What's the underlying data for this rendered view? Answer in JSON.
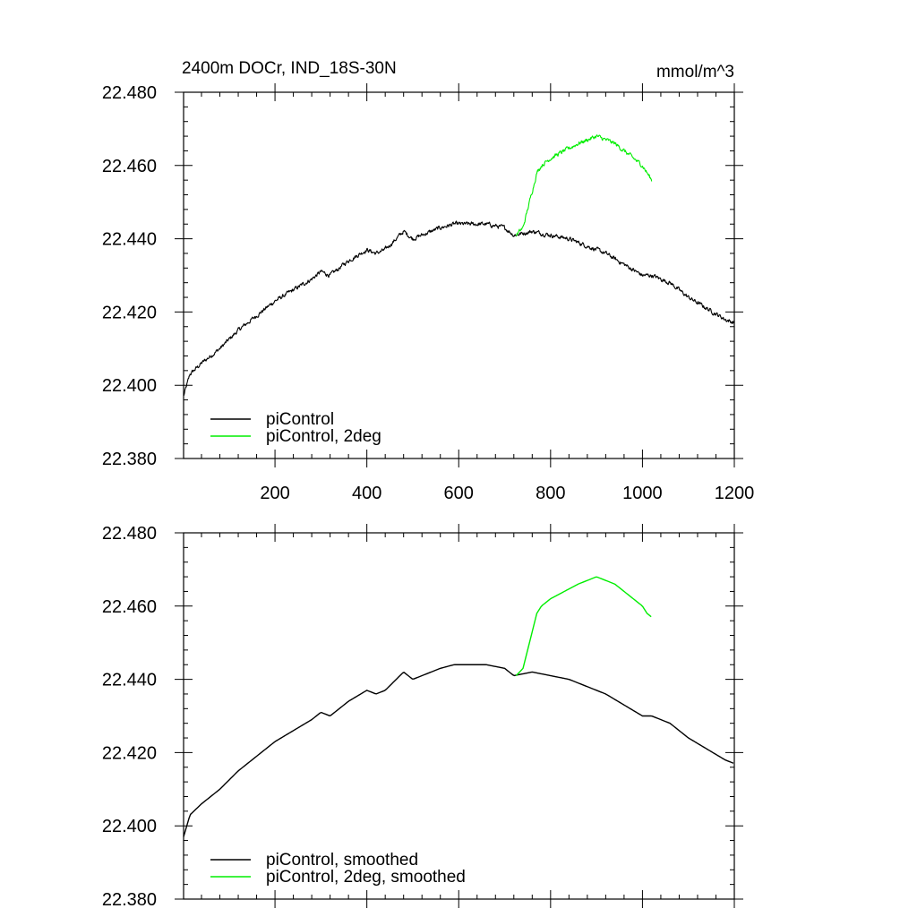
{
  "figure": {
    "title": "2400m DOCr, IND_18S-30N",
    "units": "mmol/m^3"
  },
  "colors": {
    "piControl": "#000000",
    "piControl_2deg": "#00ee00",
    "axes": "#000000",
    "background": "#ffffff"
  },
  "chart_data": [
    {
      "type": "line",
      "title": "2400m DOCr, IND_18S-30N",
      "units_label": "mmol/m^3",
      "xlim": [
        1,
        1200
      ],
      "ylim": [
        22.38,
        22.48
      ],
      "x_ticks": [
        200,
        400,
        600,
        800,
        1000,
        1200
      ],
      "x_tick_labels": [
        "200",
        "400",
        "600",
        "800",
        "1000",
        "1200"
      ],
      "y_ticks": [
        22.38,
        22.4,
        22.42,
        22.44,
        22.46,
        22.48
      ],
      "y_tick_labels": [
        "22.380",
        "22.400",
        "22.420",
        "22.440",
        "22.460",
        "22.480"
      ],
      "grid": false,
      "legend_position": "bottom-left",
      "noisy": true,
      "series": [
        {
          "name": "piControl",
          "color": "#000000",
          "x": [
            1,
            15,
            40,
            80,
            120,
            160,
            200,
            240,
            280,
            300,
            320,
            360,
            400,
            420,
            440,
            480,
            500,
            520,
            560,
            590,
            620,
            660,
            700,
            720,
            760,
            800,
            840,
            880,
            920,
            960,
            1000,
            1020,
            1060,
            1100,
            1140,
            1180,
            1200
          ],
          "y": [
            22.397,
            22.403,
            22.406,
            22.41,
            22.415,
            22.419,
            22.423,
            22.426,
            22.429,
            22.431,
            22.43,
            22.434,
            22.437,
            22.436,
            22.437,
            22.442,
            22.44,
            22.441,
            22.443,
            22.444,
            22.444,
            22.444,
            22.443,
            22.441,
            22.442,
            22.441,
            22.44,
            22.438,
            22.436,
            22.433,
            22.43,
            22.43,
            22.428,
            22.424,
            22.421,
            22.418,
            22.417
          ]
        },
        {
          "name": "piControl, 2deg",
          "color": "#00ee00",
          "x": [
            725,
            740,
            750,
            760,
            770,
            780,
            800,
            830,
            860,
            880,
            900,
            920,
            940,
            960,
            980,
            1000,
            1010,
            1020
          ],
          "y": [
            22.441,
            22.443,
            22.448,
            22.453,
            22.458,
            22.46,
            22.462,
            22.464,
            22.466,
            22.467,
            22.468,
            22.467,
            22.466,
            22.464,
            22.462,
            22.46,
            22.458,
            22.456
          ]
        }
      ]
    },
    {
      "type": "line",
      "xlim": [
        1,
        1200
      ],
      "ylim": [
        22.38,
        22.48
      ],
      "x_ticks": [
        200,
        400,
        600,
        800,
        1000,
        1200
      ],
      "y_ticks": [
        22.38,
        22.4,
        22.42,
        22.44,
        22.46,
        22.48
      ],
      "y_tick_labels": [
        "22.380",
        "22.400",
        "22.420",
        "22.440",
        "22.460",
        "22.480"
      ],
      "grid": false,
      "legend_position": "bottom-left",
      "noisy": false,
      "series": [
        {
          "name": "piControl, smoothed",
          "color": "#000000",
          "x": [
            1,
            15,
            40,
            80,
            120,
            160,
            200,
            240,
            280,
            300,
            320,
            360,
            400,
            420,
            440,
            480,
            500,
            520,
            560,
            590,
            620,
            660,
            700,
            720,
            760,
            800,
            840,
            880,
            920,
            960,
            1000,
            1020,
            1060,
            1100,
            1140,
            1180,
            1200
          ],
          "y": [
            22.397,
            22.403,
            22.406,
            22.41,
            22.415,
            22.419,
            22.423,
            22.426,
            22.429,
            22.431,
            22.43,
            22.434,
            22.437,
            22.436,
            22.437,
            22.442,
            22.44,
            22.441,
            22.443,
            22.444,
            22.444,
            22.444,
            22.443,
            22.441,
            22.442,
            22.441,
            22.44,
            22.438,
            22.436,
            22.433,
            22.43,
            22.43,
            22.428,
            22.424,
            22.421,
            22.418,
            22.417
          ]
        },
        {
          "name": "piControl, 2deg, smoothed",
          "color": "#00ee00",
          "x": [
            725,
            740,
            750,
            760,
            770,
            780,
            800,
            830,
            860,
            880,
            900,
            920,
            940,
            960,
            980,
            1000,
            1010,
            1020
          ],
          "y": [
            22.441,
            22.443,
            22.448,
            22.453,
            22.458,
            22.46,
            22.462,
            22.464,
            22.466,
            22.467,
            22.468,
            22.467,
            22.466,
            22.464,
            22.462,
            22.46,
            22.458,
            22.457
          ]
        }
      ]
    }
  ]
}
